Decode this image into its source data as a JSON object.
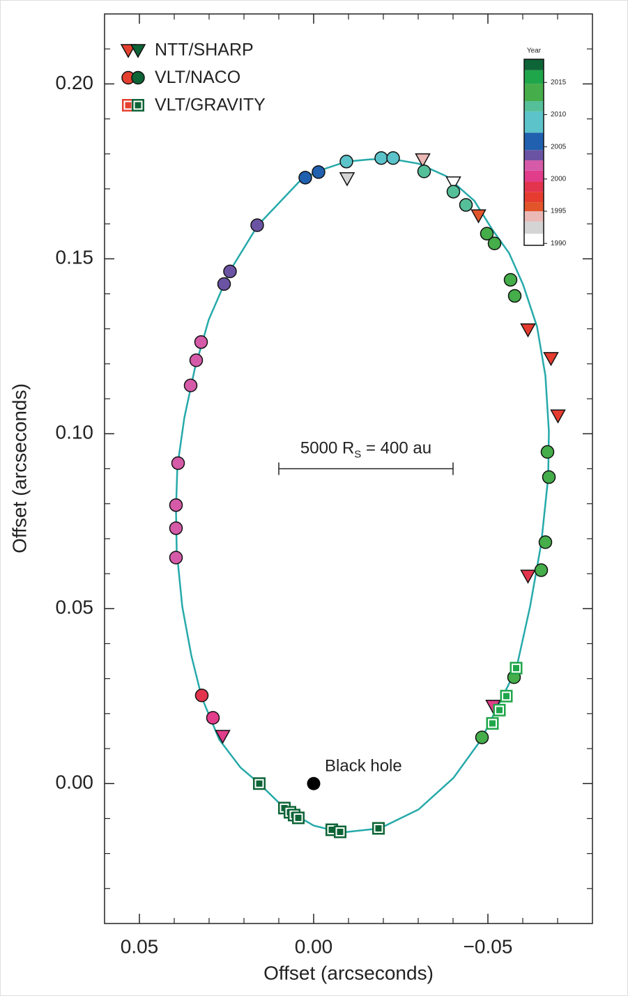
{
  "chart_data": {
    "type": "scatter",
    "x_label": "Offset (arcseconds)",
    "y_label": "Offset (arcseconds)",
    "xlim": [
      0.06,
      -0.08
    ],
    "ylim": [
      -0.04,
      0.22
    ],
    "xticks": [
      0.05,
      {
        "value": 0,
        "label": "0.00"
      },
      {
        "value": -0.05,
        "label": "−0.05"
      }
    ],
    "yticks": [
      {
        "value": 0,
        "label": "0.00"
      },
      0.05,
      {
        "value": 0.1,
        "label": "0.10"
      },
      0.15,
      {
        "value": 0.2,
        "label": "0.20"
      }
    ],
    "xminorticks": [
      0.04,
      0.03,
      0.02,
      0.01,
      -0.01,
      -0.02,
      -0.03,
      -0.04,
      -0.06,
      -0.07
    ],
    "yminorticks": [
      -0.03,
      -0.02,
      -0.01,
      0.01,
      0.02,
      0.03,
      0.04,
      0.06,
      0.07,
      0.08,
      0.09,
      0.11,
      0.12,
      0.13,
      0.14,
      0.16,
      0.17,
      0.18,
      0.19,
      0.21
    ],
    "orbit": {
      "color": "#26a9aa",
      "x": [
        -0.0481,
        -0.0581,
        -0.0621,
        -0.0653,
        -0.0673,
        -0.0675,
        -0.0665,
        -0.0641,
        -0.0601,
        -0.0561,
        -0.0511,
        -0.0461,
        -0.0381,
        -0.0301,
        -0.022,
        -0.016,
        -0.0094,
        -0.001,
        0.004,
        0.016,
        0.024,
        0.0301,
        0.0341,
        0.0371,
        0.0391,
        0.0395,
        0.0393,
        0.0377,
        0.0351,
        0.0321,
        0.0271,
        0.021,
        0.0156,
        0.008,
        0.0,
        -0.008,
        -0.019,
        -0.0301,
        -0.0401,
        -0.0481
      ],
      "y": [
        0.0126,
        0.0326,
        0.0506,
        0.0686,
        0.0876,
        0.1006,
        0.1166,
        0.1306,
        0.1426,
        0.1516,
        0.1586,
        0.1666,
        0.1736,
        0.1772,
        0.1786,
        0.1784,
        0.1778,
        0.175,
        0.1722,
        0.1596,
        0.1466,
        0.1326,
        0.1186,
        0.1046,
        0.0906,
        0.0786,
        0.0666,
        0.0506,
        0.0366,
        0.0246,
        0.0126,
        0.0046,
        0.0,
        -0.0074,
        -0.012,
        -0.014,
        -0.0128,
        -0.0074,
        0.0016,
        0.0126
      ]
    },
    "series": [
      {
        "name": "NTT/SHARP",
        "marker": "triangle",
        "legend_colors": [
          "#e5402f",
          "#0d6436"
        ],
        "x": [
          -0.0313,
          -0.0401,
          -0.0096,
          -0.0473,
          -0.0615,
          -0.0681,
          -0.0701,
          -0.0615,
          -0.0515,
          0.0261
        ],
        "y": [
          0.1784,
          0.1718,
          0.173,
          0.1624,
          0.1298,
          0.1216,
          0.1052,
          0.0594,
          0.0222,
          0.0136
        ],
        "colors": [
          "#eab8b5",
          "#ffffff",
          "#d4d4d4",
          "#e2552b",
          "#e63c2f",
          "#e63c2f",
          "#e63c2f",
          "#e2344d",
          "#e13d8a",
          "#e13d8a"
        ]
      },
      {
        "name": "VLT/NACO",
        "marker": "circle",
        "legend_colors": [
          "#e5402f",
          "#0d6436"
        ],
        "x": [
          0.0024,
          -0.0014,
          -0.0094,
          -0.0194,
          -0.0228,
          -0.0317,
          -0.0401,
          -0.0437,
          -0.0497,
          -0.0519,
          -0.0565,
          -0.0577,
          -0.0671,
          -0.0675,
          -0.0665,
          -0.0653,
          -0.0575,
          -0.0483,
          0.0162,
          0.024,
          0.0257,
          0.0323,
          0.0337,
          0.0353,
          0.0389,
          0.0395,
          0.0395,
          0.0395,
          0.0321,
          0.0289
        ],
        "y": [
          0.1732,
          0.1748,
          0.1778,
          0.1788,
          0.1788,
          0.175,
          0.1692,
          0.1654,
          0.1572,
          0.1544,
          0.144,
          0.1394,
          0.0948,
          0.0876,
          0.069,
          0.061,
          0.0304,
          0.0132,
          0.1596,
          0.1464,
          0.1428,
          0.1262,
          0.121,
          0.1138,
          0.0916,
          0.0796,
          0.073,
          0.0646,
          0.0252,
          0.0188
        ],
        "colors": [
          "#2060ae",
          "#2060ae",
          "#5bc3c9",
          "#5bc3c9",
          "#5bc3c9",
          "#55bf99",
          "#55bf99",
          "#55bf99",
          "#45ad4a",
          "#45ad4a",
          "#45ad4a",
          "#45ad4a",
          "#45ad4a",
          "#45ad4a",
          "#45ad4a",
          "#45ad4a",
          "#45ad4a",
          "#45ad4a",
          "#6b53a3",
          "#6b53a3",
          "#6b53a3",
          "#d55aa8",
          "#d55aa8",
          "#d55aa8",
          "#d55aa8",
          "#d55aa8",
          "#d55aa8",
          "#d55aa8",
          "#e2344d",
          "#e13d8a"
        ]
      },
      {
        "name": "VLT/GRAVITY",
        "marker": "square",
        "legend_colors": [
          "#e5402f",
          "#0d6436"
        ],
        "x": [
          0.0156,
          0.0084,
          0.0068,
          0.0056,
          0.0044,
          -0.0052,
          -0.0076,
          -0.0186,
          -0.0513,
          -0.0533,
          -0.0553,
          -0.0581
        ],
        "y": [
          0.0,
          -0.007,
          -0.0082,
          -0.009,
          -0.0098,
          -0.0132,
          -0.0138,
          -0.0128,
          0.0172,
          0.021,
          0.025,
          0.033
        ],
        "colors": [
          "#0d6436",
          "#0d6436",
          "#0d6436",
          "#0d6436",
          "#0d6436",
          "#0d6436",
          "#0d6436",
          "#0d6436",
          "#1fa64a",
          "#1fa64a",
          "#1fa64a",
          "#1fa64a"
        ]
      }
    ],
    "annotations": [
      {
        "text": "Black hole",
        "x": 0,
        "y": 0,
        "color": "#000000"
      }
    ],
    "scale_bar": {
      "label_parts": [
        "5000 R",
        "S",
        " = 400 au"
      ],
      "x1": 0.01,
      "x2": -0.04,
      "y": 0.09
    },
    "colorbar": {
      "title": "Year",
      "lim": [
        1989.7,
        2018.6
      ],
      "ticks": [
        1990,
        1995,
        2000,
        2005,
        2010,
        2015
      ],
      "band_edges": [
        1989.7,
        1991.5,
        1993.4,
        1995.0,
        1996.4,
        1998.0,
        1999.6,
        2001.3,
        2002.9,
        2004.5,
        2007.2,
        2010.5,
        2012.1,
        2014.8,
        2016.9,
        2018.6
      ],
      "band_colors": [
        "#ffffff",
        "#d4d4d4",
        "#eab8b5",
        "#e2552b",
        "#e63c2f",
        "#e2344d",
        "#e13d8a",
        "#d55aa8",
        "#6b53a3",
        "#2060ae",
        "#5bc3c9",
        "#55bf99",
        "#45ad4a",
        "#1fa64a",
        "#0d6436"
      ]
    }
  }
}
